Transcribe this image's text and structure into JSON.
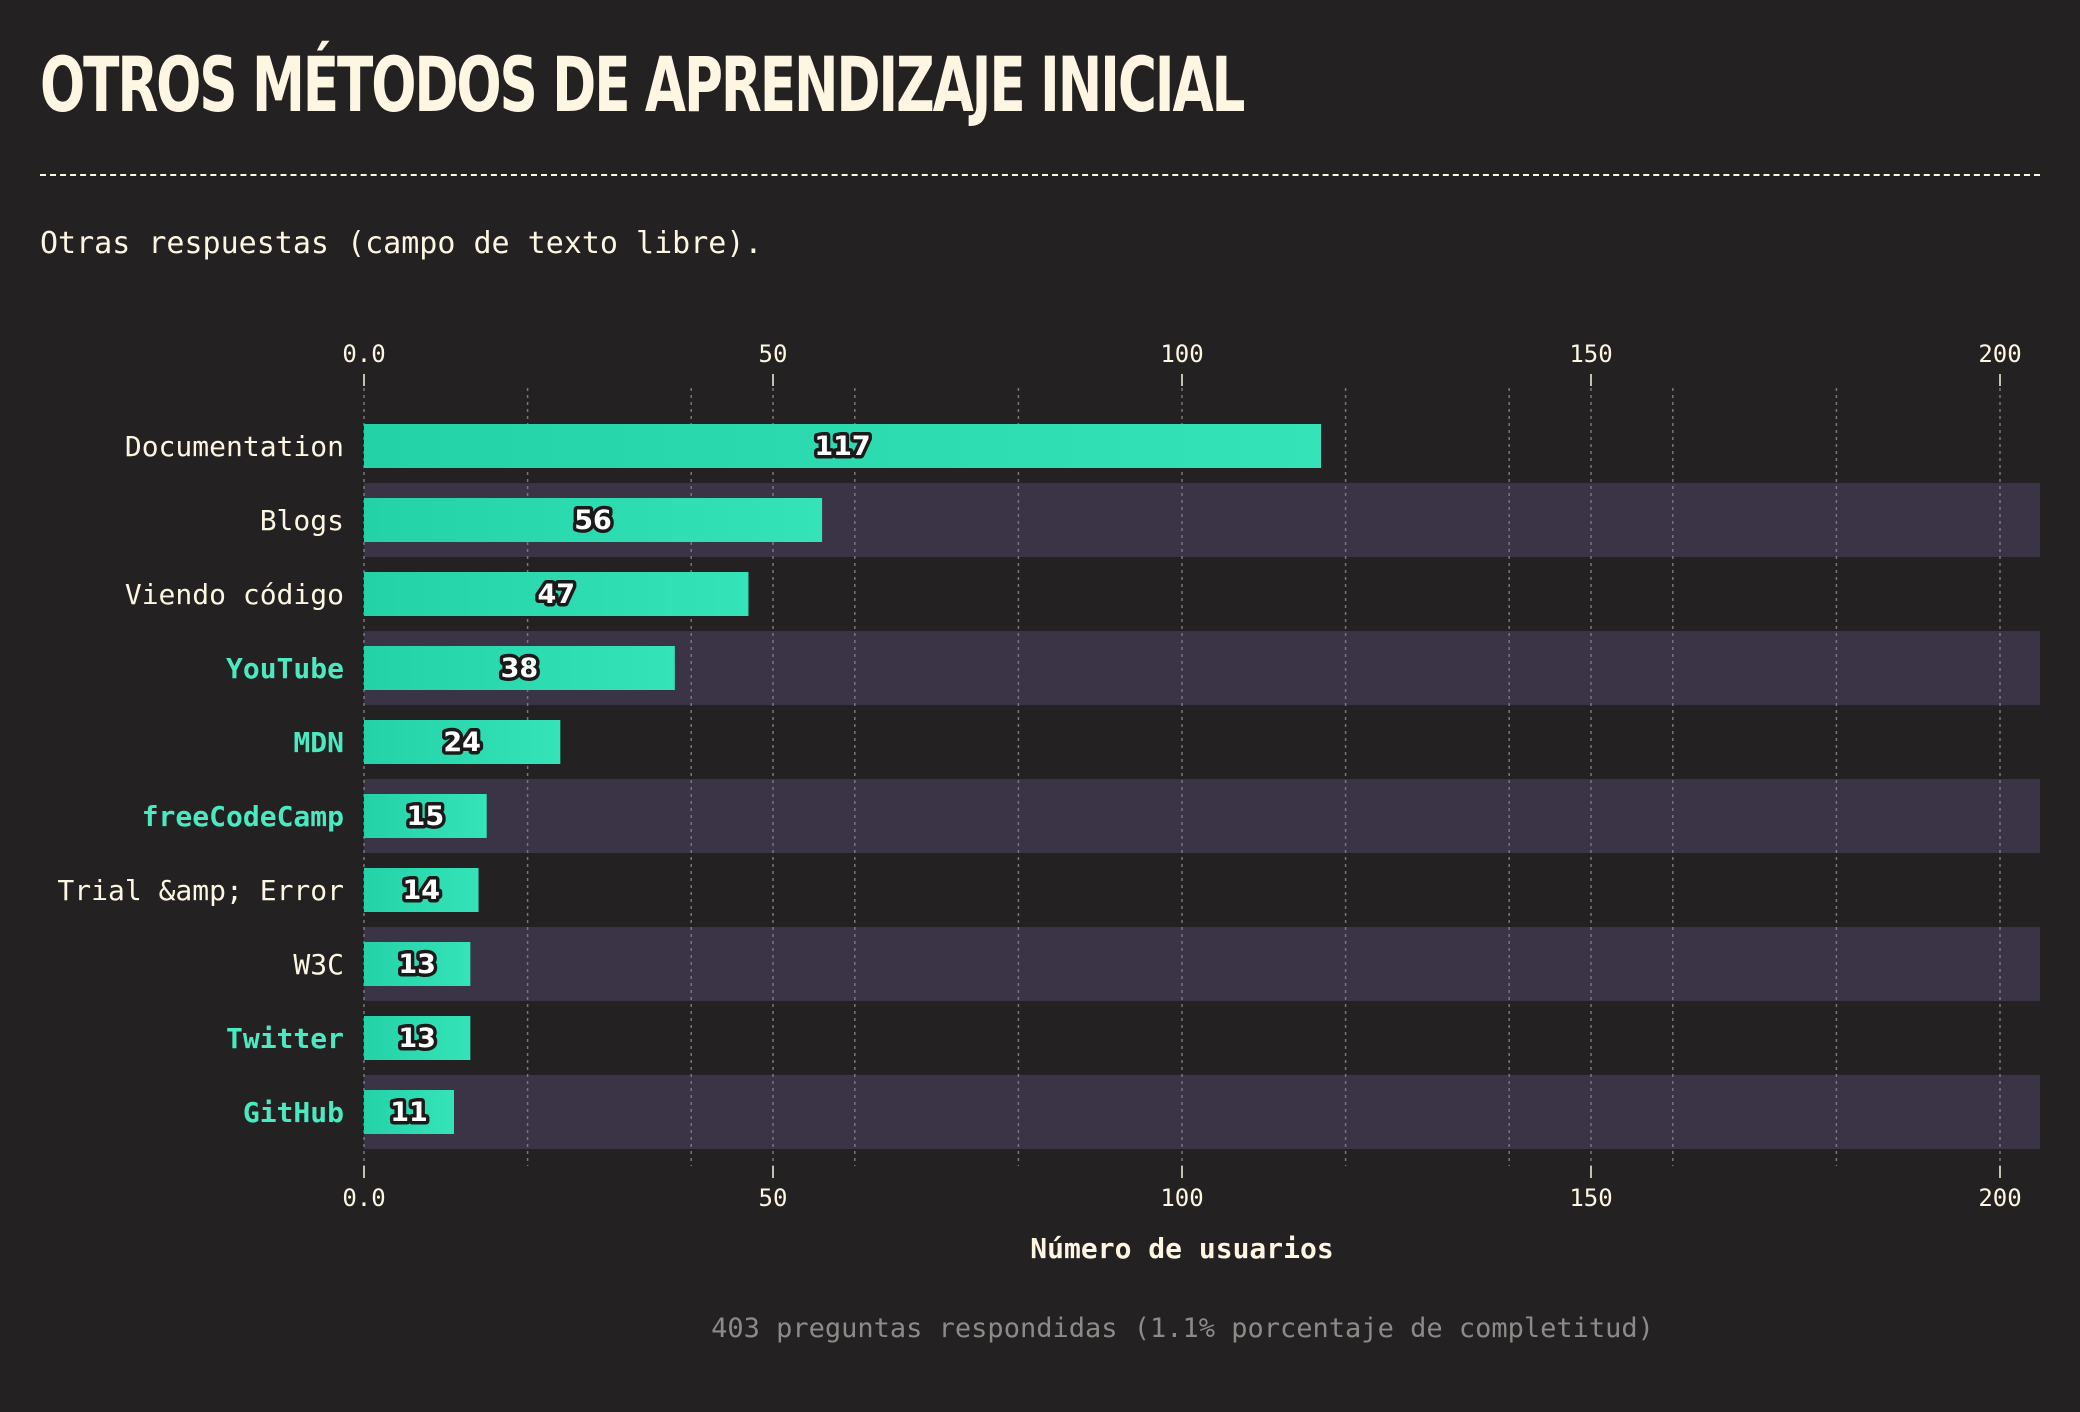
{
  "header": {
    "title": "OTROS MÉTODOS DE APRENDIZAJE INICIAL",
    "subtitle": "Otras respuestas (campo de texto libre)."
  },
  "footer": {
    "note": "403 preguntas respondidas (1.1% porcentaje de completitud)"
  },
  "colors": {
    "background": "#242123",
    "title": "#fdf6e3",
    "bar": "#2dd9b0",
    "bar_highlight_start": "#24d2a8",
    "bar_highlight_end": "#34e3b8",
    "band": "#3a3446",
    "highlight_label": "#4aeac0",
    "label": "#fdf6e3",
    "gridline": "#7a7679",
    "footnote": "#8d8a88"
  },
  "chart_data": {
    "type": "bar",
    "orientation": "horizontal",
    "categories": [
      "Documentation",
      "Blogs",
      "Viendo código",
      "YouTube",
      "MDN",
      "freeCodeCamp",
      "Trial &amp; Error",
      "W3C",
      "Twitter",
      "GitHub"
    ],
    "values": [
      117,
      56,
      47,
      38,
      24,
      15,
      14,
      13,
      13,
      11
    ],
    "highlighted": [
      false,
      false,
      false,
      true,
      true,
      true,
      false,
      false,
      true,
      true
    ],
    "xlim": [
      0,
      205
    ],
    "ticks": [
      0,
      50,
      100,
      150,
      200
    ],
    "tick_labels": [
      "0.0",
      "50",
      "100",
      "150",
      "200"
    ],
    "minor_gridlines": [
      20,
      40,
      60,
      80,
      120,
      140,
      160,
      180
    ],
    "xlabel": "Número de usuarios",
    "ylabel": "",
    "alternating_bands": true
  }
}
